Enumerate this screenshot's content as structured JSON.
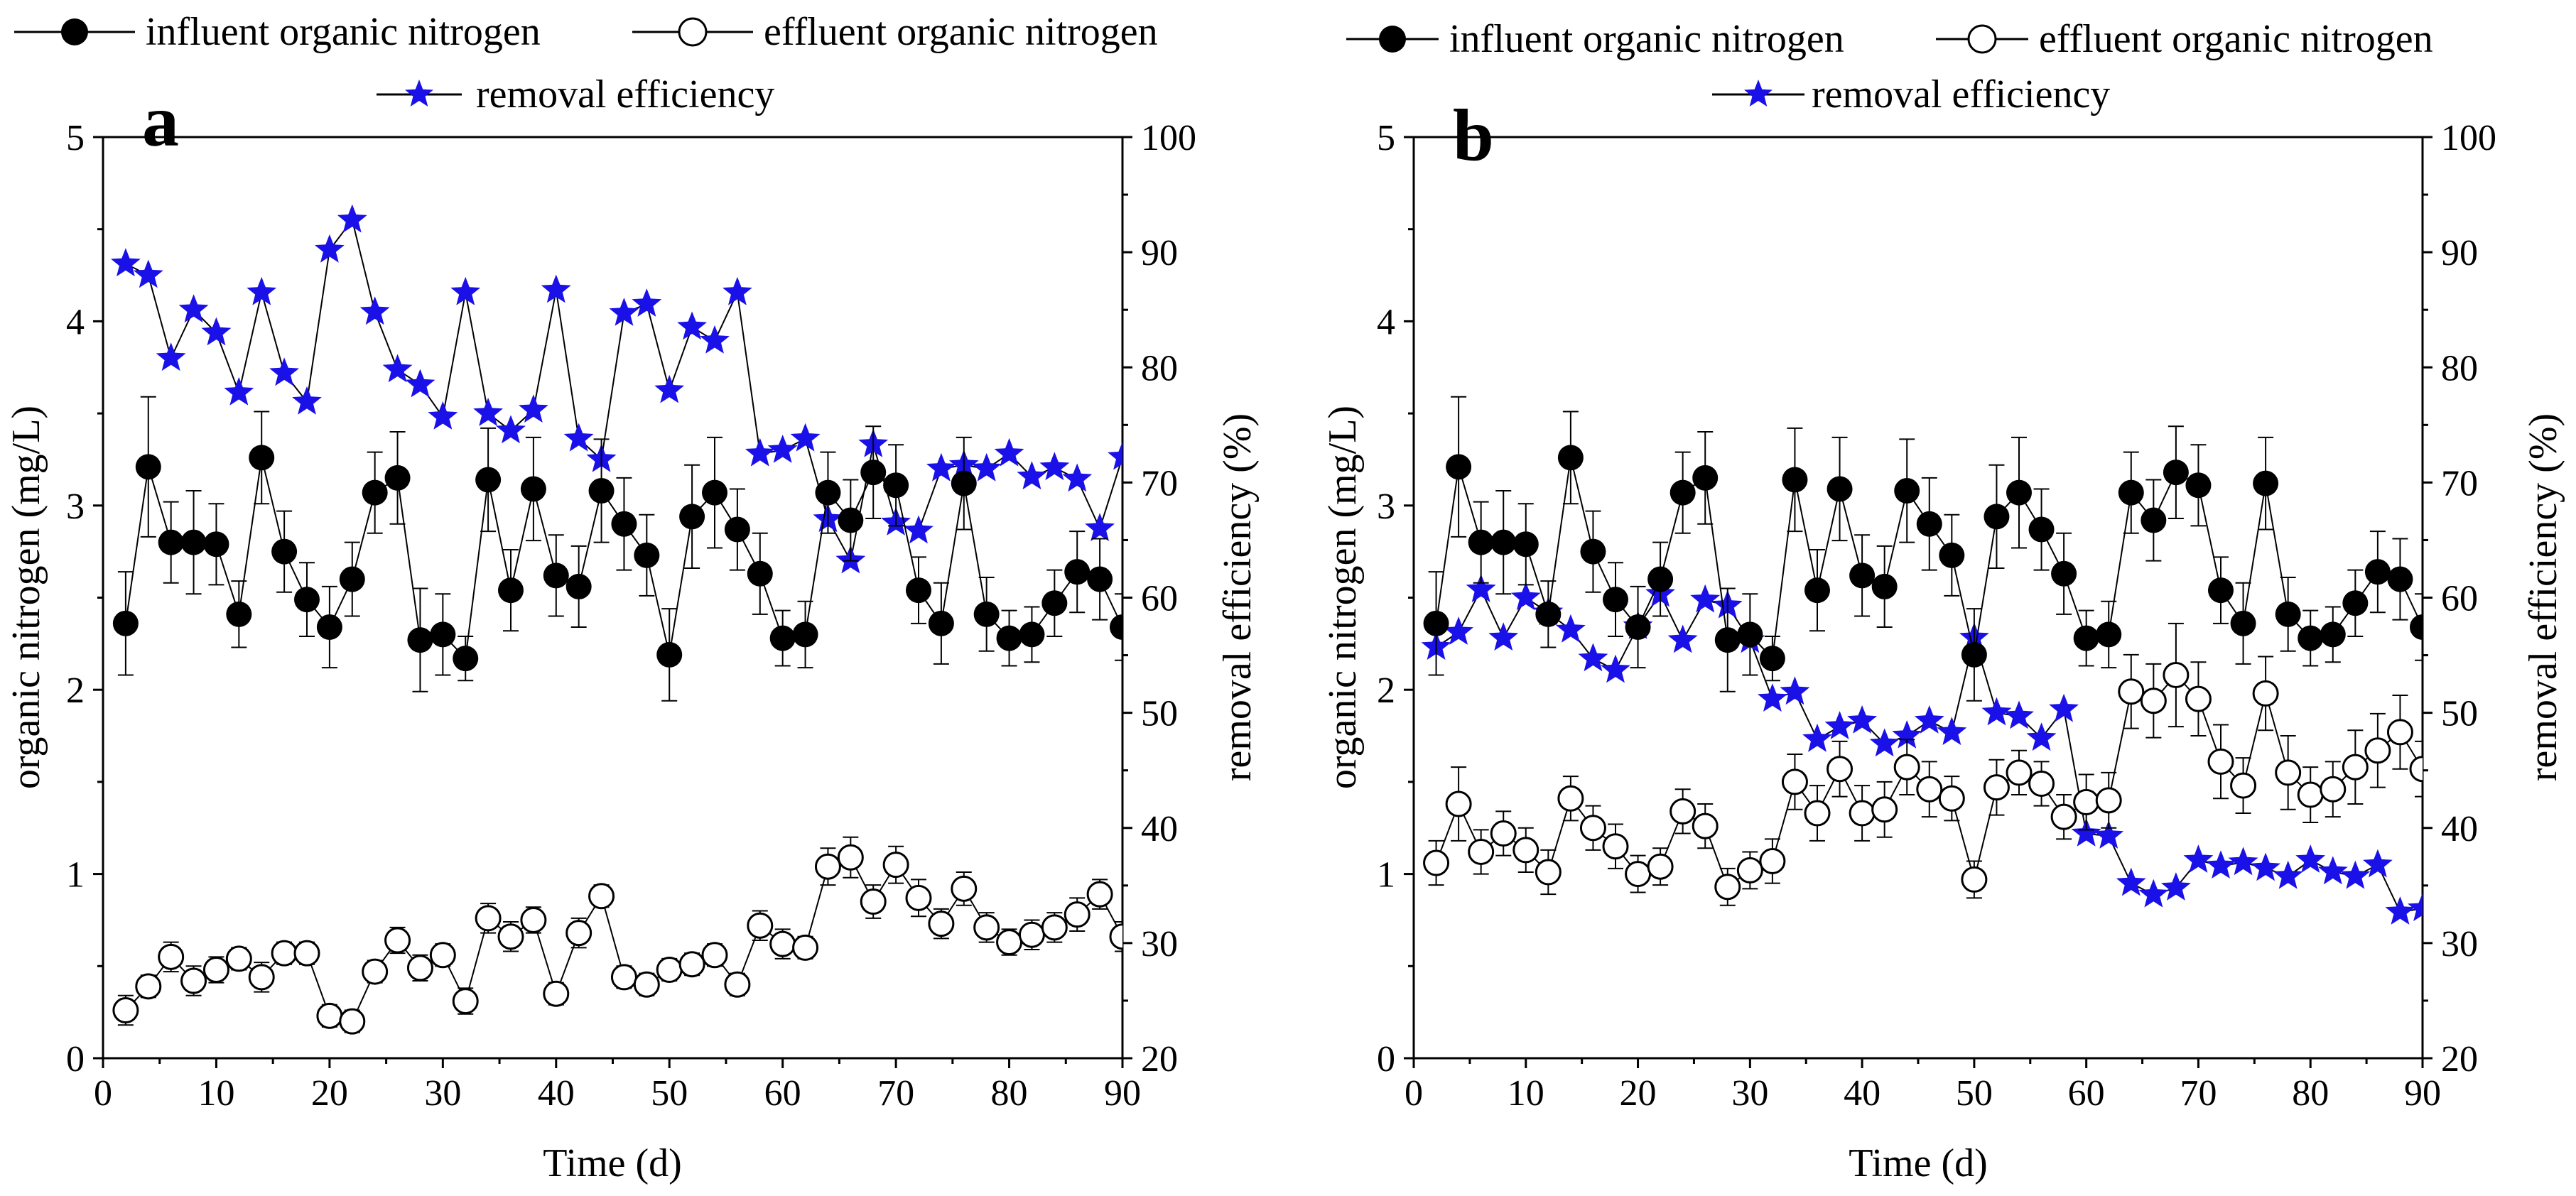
{
  "colors": {
    "axis": "#000000",
    "removal": "#1a10e8",
    "marker_fill": "#000000",
    "open_fill": "#ffffff"
  },
  "legend": {
    "influent": "influent organic nitrogen",
    "effluent": "effluent organic nitrogen",
    "removal": "removal efficiency"
  },
  "chart_data": [
    {
      "type": "line",
      "panel_label": "a",
      "xlabel": "Time (d)",
      "ylabel": "organic nitrogen (mg/L)",
      "y2label": "removal efficiency (%)",
      "xlim": [
        0,
        90
      ],
      "ylim": [
        0,
        5
      ],
      "y2lim": [
        20,
        100
      ],
      "xticks": [
        0,
        10,
        20,
        30,
        40,
        50,
        60,
        70,
        80,
        90
      ],
      "yticks": [
        0,
        1,
        2,
        3,
        4,
        5
      ],
      "y2ticks": [
        20,
        30,
        40,
        50,
        60,
        70,
        80,
        90,
        100
      ],
      "x": [
        2,
        4,
        6,
        8,
        10,
        12,
        14,
        16,
        18,
        20,
        22,
        24,
        26,
        28,
        30,
        32,
        34,
        36,
        38,
        40,
        42,
        44,
        46,
        48,
        50,
        52,
        54,
        56,
        58,
        60,
        62,
        64,
        66,
        68,
        70,
        72,
        74,
        76,
        78,
        80,
        82,
        84,
        86,
        88,
        90
      ],
      "series": [
        {
          "name": "influent organic nitrogen",
          "axis": "left",
          "values": [
            2.36,
            3.21,
            2.8,
            2.8,
            2.79,
            2.41,
            3.26,
            2.75,
            2.49,
            2.34,
            2.6,
            3.07,
            3.15,
            2.27,
            2.3,
            2.17,
            3.14,
            2.54,
            3.09,
            2.62,
            2.56,
            3.08,
            2.9,
            2.73,
            2.19,
            2.94,
            3.07,
            2.87,
            2.63,
            2.28,
            2.3,
            3.07,
            2.92,
            3.18,
            3.11,
            2.54,
            2.36,
            3.12,
            2.41,
            2.28,
            2.3,
            2.47,
            2.64,
            2.6,
            2.34
          ],
          "errors": [
            0.28,
            0.38,
            0.22,
            0.28,
            0.22,
            0.18,
            0.25,
            0.22,
            0.2,
            0.22,
            0.2,
            0.22,
            0.25,
            0.28,
            0.22,
            0.12,
            0.28,
            0.22,
            0.28,
            0.22,
            0.22,
            0.28,
            0.25,
            0.22,
            0.25,
            0.28,
            0.3,
            0.22,
            0.22,
            0.15,
            0.18,
            0.22,
            0.22,
            0.25,
            0.22,
            0.18,
            0.22,
            0.25,
            0.2,
            0.15,
            0.15,
            0.18,
            0.22,
            0.22,
            0.18
          ]
        },
        {
          "name": "effluent organic nitrogen",
          "axis": "left",
          "values": [
            0.26,
            0.39,
            0.55,
            0.42,
            0.48,
            0.54,
            0.44,
            0.57,
            0.57,
            0.23,
            0.2,
            0.47,
            0.64,
            0.49,
            0.56,
            0.31,
            0.76,
            0.66,
            0.75,
            0.35,
            0.68,
            0.88,
            0.44,
            0.4,
            0.48,
            0.51,
            0.56,
            0.4,
            0.72,
            0.62,
            0.6,
            1.04,
            1.09,
            0.85,
            1.05,
            0.87,
            0.73,
            0.92,
            0.71,
            0.63,
            0.67,
            0.71,
            0.78,
            0.89,
            0.66
          ],
          "errors": [
            0.08,
            0.06,
            0.08,
            0.08,
            0.07,
            0.06,
            0.08,
            0.06,
            0.06,
            0.06,
            0.06,
            0.06,
            0.07,
            0.07,
            0.06,
            0.07,
            0.08,
            0.08,
            0.07,
            0.06,
            0.08,
            0.06,
            0.06,
            0.06,
            0.06,
            0.06,
            0.06,
            0.06,
            0.08,
            0.08,
            0.06,
            0.1,
            0.11,
            0.09,
            0.1,
            0.1,
            0.08,
            0.09,
            0.08,
            0.07,
            0.08,
            0.08,
            0.09,
            0.08,
            0.08
          ]
        },
        {
          "name": "removal efficiency",
          "axis": "right",
          "values": [
            89.0,
            88.0,
            80.8,
            85.0,
            83.0,
            77.8,
            86.5,
            79.5,
            77.0,
            90.2,
            92.8,
            84.8,
            79.8,
            78.5,
            75.7,
            86.5,
            76.0,
            74.5,
            76.3,
            86.7,
            73.8,
            72.0,
            84.7,
            85.5,
            78.0,
            83.5,
            82.3,
            86.5,
            72.5,
            72.8,
            73.8,
            66.8,
            63.2,
            73.3,
            66.5,
            65.8,
            71.2,
            71.5,
            71.2,
            72.5,
            70.5,
            71.3,
            70.3,
            66.0,
            72.2
          ]
        }
      ]
    },
    {
      "type": "line",
      "panel_label": "b",
      "xlabel": "Time (d)",
      "ylabel": "organic nitrogen (mg/L)",
      "y2label": "removal efficiency (%)",
      "xlim": [
        0,
        90
      ],
      "ylim": [
        0,
        5
      ],
      "y2lim": [
        20,
        100
      ],
      "xticks": [
        0,
        10,
        20,
        30,
        40,
        50,
        60,
        70,
        80,
        90
      ],
      "yticks": [
        0,
        1,
        2,
        3,
        4,
        5
      ],
      "y2ticks": [
        20,
        30,
        40,
        50,
        60,
        70,
        80,
        90,
        100
      ],
      "x": [
        2,
        4,
        6,
        8,
        10,
        12,
        14,
        16,
        18,
        20,
        22,
        24,
        26,
        28,
        30,
        32,
        34,
        36,
        38,
        40,
        42,
        44,
        46,
        48,
        50,
        52,
        54,
        56,
        58,
        60,
        62,
        64,
        66,
        68,
        70,
        72,
        74,
        76,
        78,
        80,
        82,
        84,
        86,
        88,
        90
      ],
      "series": [
        {
          "name": "influent organic nitrogen",
          "axis": "left",
          "values": [
            2.36,
            3.21,
            2.8,
            2.8,
            2.79,
            2.41,
            3.26,
            2.75,
            2.49,
            2.34,
            2.6,
            3.07,
            3.15,
            2.27,
            2.3,
            2.17,
            3.14,
            2.54,
            3.09,
            2.62,
            2.56,
            3.08,
            2.9,
            2.73,
            2.19,
            2.94,
            3.07,
            2.87,
            2.63,
            2.28,
            2.3,
            3.07,
            2.92,
            3.18,
            3.11,
            2.54,
            2.36,
            3.12,
            2.41,
            2.28,
            2.3,
            2.47,
            2.64,
            2.6,
            2.34
          ],
          "errors": [
            0.28,
            0.38,
            0.22,
            0.28,
            0.22,
            0.18,
            0.25,
            0.22,
            0.2,
            0.22,
            0.2,
            0.22,
            0.25,
            0.28,
            0.22,
            0.12,
            0.28,
            0.22,
            0.28,
            0.22,
            0.22,
            0.28,
            0.25,
            0.22,
            0.25,
            0.28,
            0.3,
            0.22,
            0.22,
            0.15,
            0.18,
            0.22,
            0.22,
            0.25,
            0.22,
            0.18,
            0.22,
            0.25,
            0.2,
            0.15,
            0.15,
            0.18,
            0.22,
            0.22,
            0.18
          ]
        },
        {
          "name": "effluent organic nitrogen",
          "axis": "left",
          "values": [
            1.06,
            1.38,
            1.12,
            1.22,
            1.13,
            1.01,
            1.41,
            1.25,
            1.15,
            1.0,
            1.04,
            1.34,
            1.26,
            0.93,
            1.02,
            1.07,
            1.5,
            1.33,
            1.57,
            1.33,
            1.35,
            1.58,
            1.46,
            1.41,
            0.97,
            1.47,
            1.55,
            1.49,
            1.31,
            1.39,
            1.4,
            1.99,
            1.94,
            2.08,
            1.95,
            1.61,
            1.48,
            1.98,
            1.55,
            1.43,
            1.46,
            1.58,
            1.67,
            1.77,
            1.57
          ],
          "errors": [
            0.12,
            0.2,
            0.12,
            0.12,
            0.12,
            0.12,
            0.12,
            0.12,
            0.12,
            0.1,
            0.1,
            0.12,
            0.12,
            0.1,
            0.1,
            0.12,
            0.15,
            0.15,
            0.15,
            0.15,
            0.15,
            0.15,
            0.15,
            0.12,
            0.1,
            0.15,
            0.12,
            0.12,
            0.12,
            0.15,
            0.15,
            0.2,
            0.2,
            0.28,
            0.2,
            0.2,
            0.15,
            0.2,
            0.2,
            0.15,
            0.15,
            0.2,
            0.2,
            0.2,
            0.15
          ]
        },
        {
          "name": "removal efficiency",
          "axis": "right",
          "values": [
            55.7,
            57.0,
            60.7,
            56.5,
            60.0,
            58.7,
            57.2,
            54.7,
            53.7,
            57.5,
            60.3,
            56.3,
            59.8,
            59.3,
            56.3,
            51.2,
            51.8,
            47.7,
            48.8,
            49.3,
            47.3,
            48.0,
            49.3,
            48.3,
            56.5,
            50.0,
            49.7,
            47.8,
            50.3,
            39.5,
            39.3,
            35.2,
            34.2,
            34.8,
            37.2,
            36.7,
            37.0,
            36.5,
            35.8,
            37.2,
            36.2,
            35.8,
            36.8,
            32.7,
            33.0
          ]
        }
      ]
    }
  ]
}
